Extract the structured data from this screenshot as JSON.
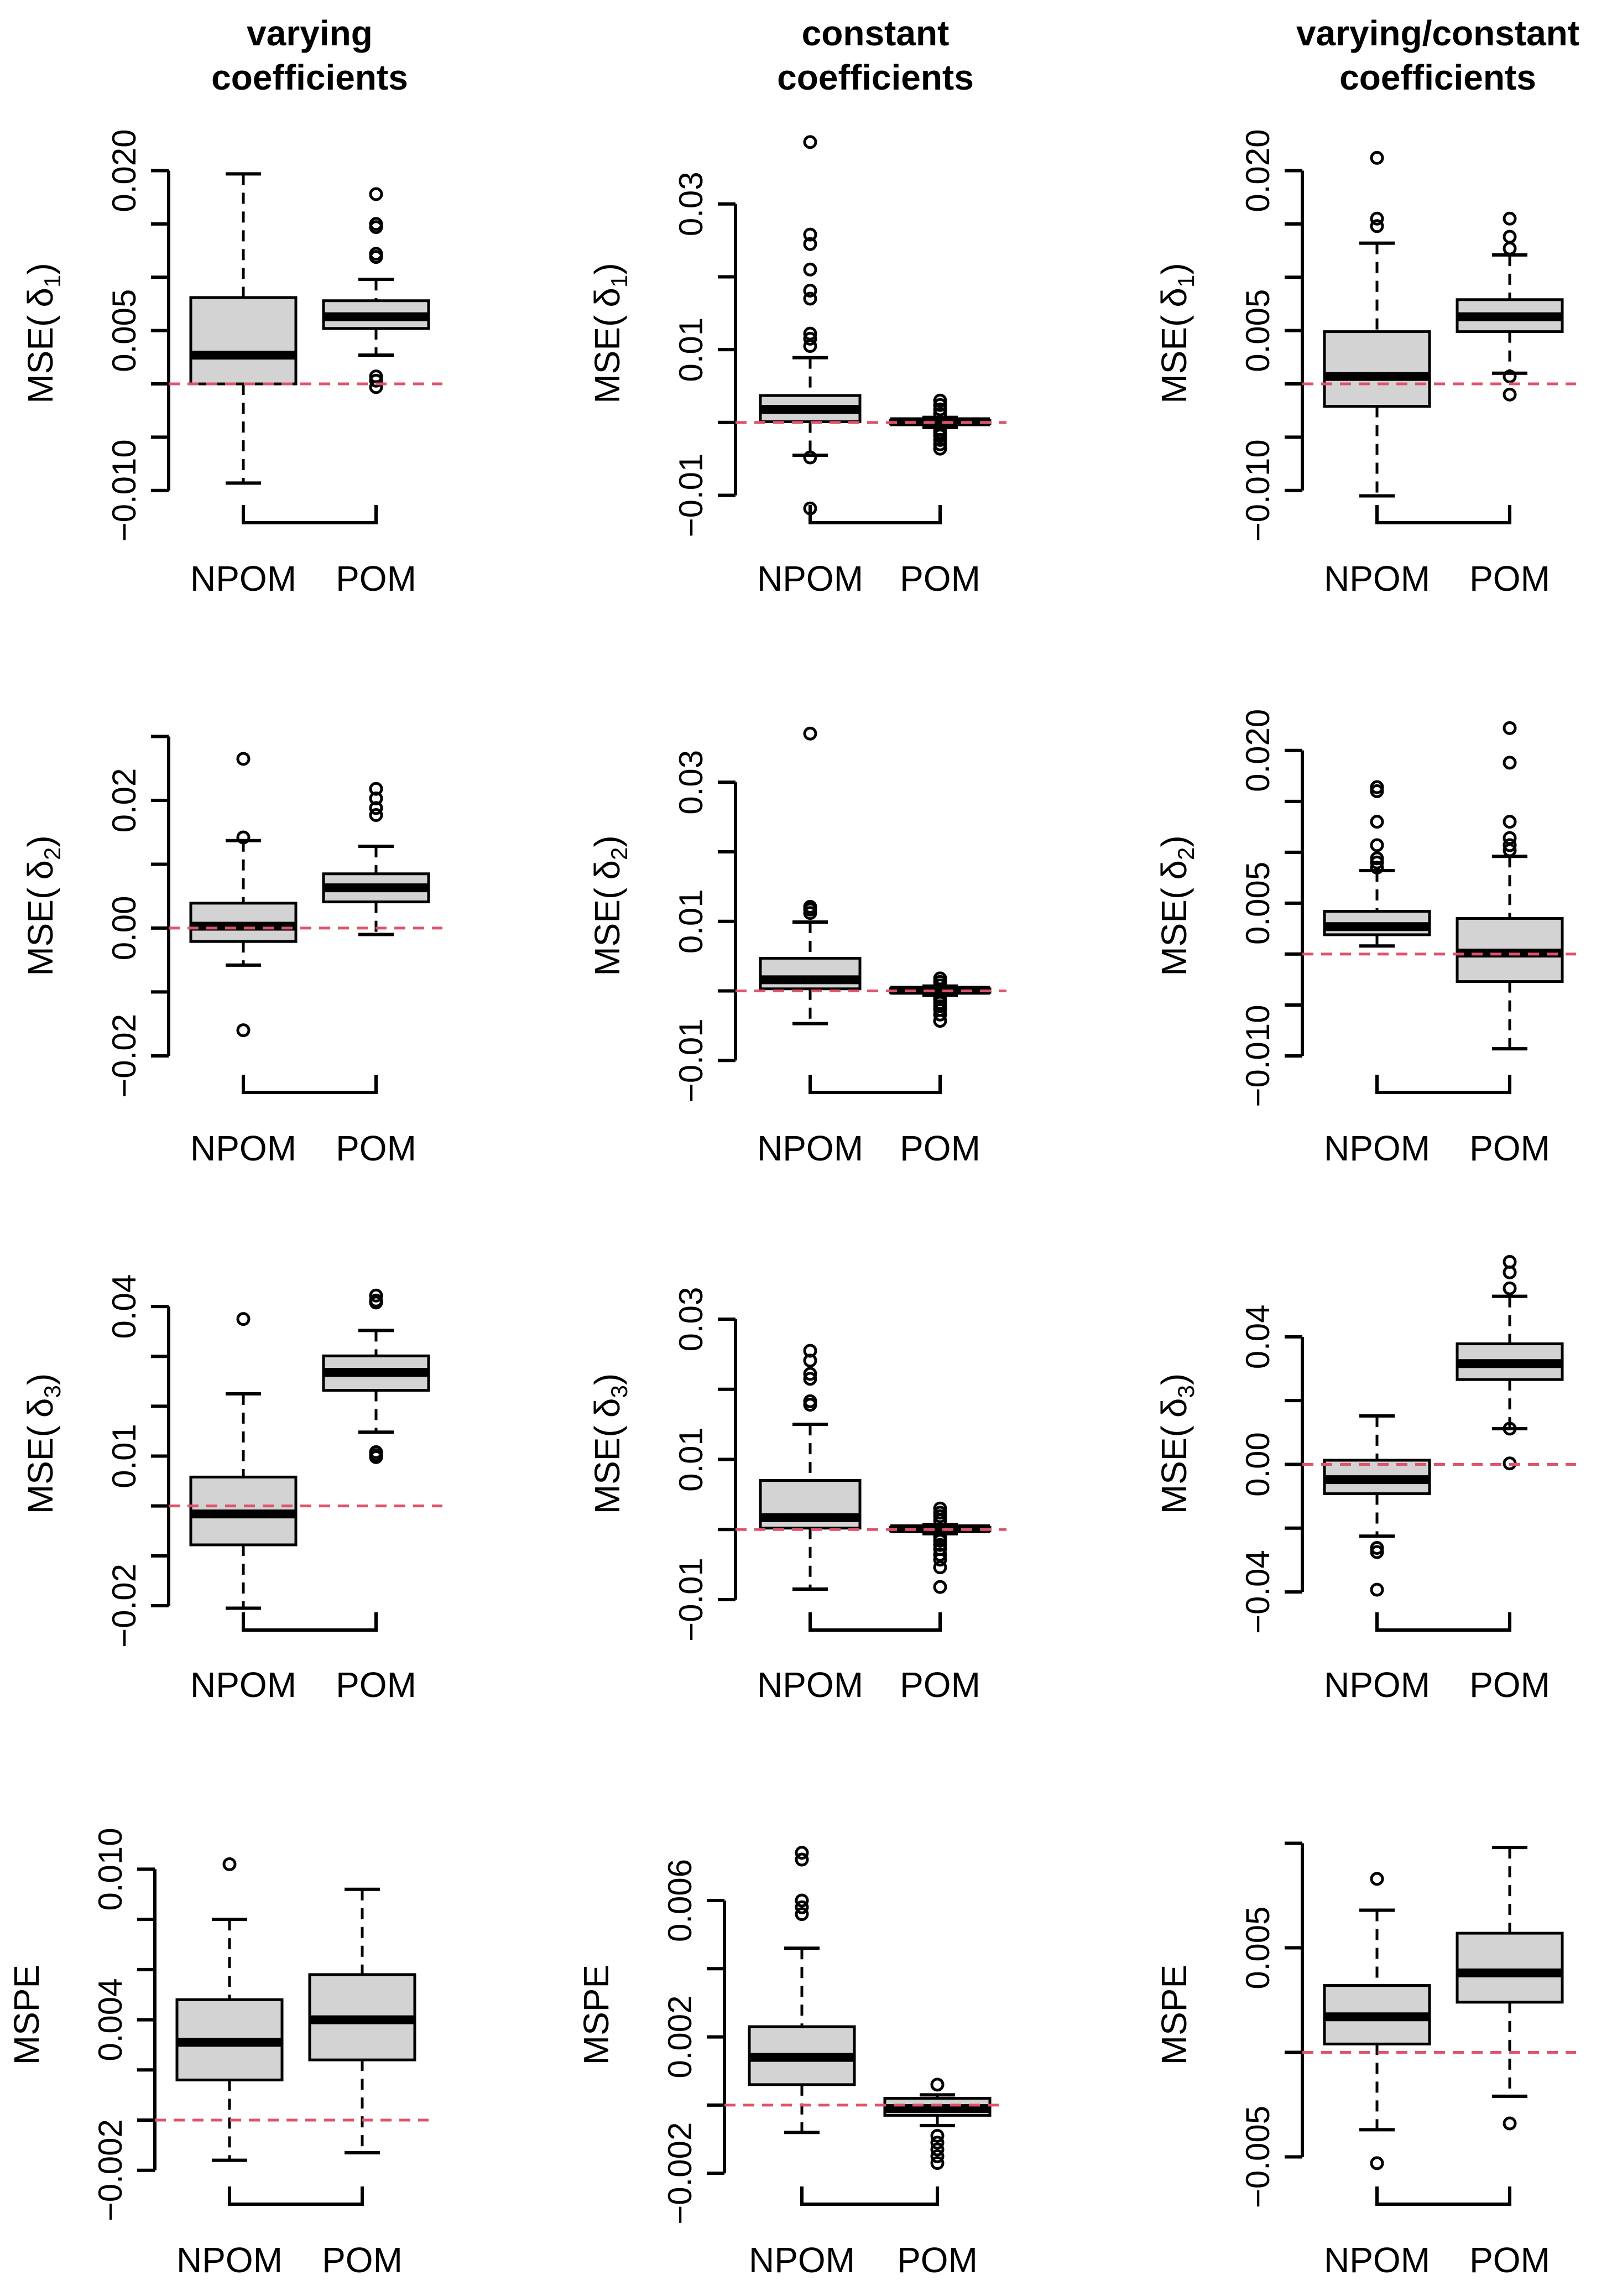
{
  "figure": {
    "columns": [
      {
        "title": "varying\ncoefficients"
      },
      {
        "title": "constant\ncoefficients"
      },
      {
        "title": "varying/constant\ncoefficients"
      }
    ]
  },
  "colors": {
    "box_fill": "#d3d3d3",
    "reference_line": "#df536b",
    "stroke": "#000000"
  },
  "chart_data": [
    {
      "type": "boxplot",
      "title": "",
      "ylabel": "MSE(δ1)",
      "ylabel_main": "MSE(",
      "ylabel_greek": "δ",
      "ylabel_sub": "1",
      "ylabel_end": ")",
      "ylim": [
        -0.0125,
        0.022
      ],
      "yticks": [
        -0.01,
        0.005,
        0.02
      ],
      "ytick_labels": [
        "−0.010",
        "0.005",
        "0.020"
      ],
      "yminor": [
        -0.005,
        0.0,
        0.01,
        0.015
      ],
      "categories": [
        "NPOM",
        "POM"
      ],
      "reference": 0,
      "boxes": [
        {
          "name": "NPOM",
          "whislo": -0.0093,
          "q1": 0.0,
          "med": 0.0027,
          "q3": 0.0081,
          "whishi": 0.0197,
          "outliers": []
        },
        {
          "name": "POM",
          "whislo": 0.0027,
          "q1": 0.0052,
          "med": 0.0063,
          "q3": 0.0078,
          "whishi": 0.0098,
          "outliers": [
            0.0178,
            0.015,
            0.0147,
            0.0122,
            0.0119,
            0.0007,
            0.0003,
            -0.0003
          ]
        }
      ]
    },
    {
      "type": "boxplot",
      "title": "",
      "ylabel": "MSE(δ1)",
      "ylabel_main": "MSE(",
      "ylabel_greek": "δ",
      "ylabel_sub": "1",
      "ylabel_end": ")",
      "ylim": [
        -0.013,
        0.0375
      ],
      "yticks": [
        -0.01,
        0.01,
        0.03
      ],
      "ytick_labels": [
        "−0.01",
        "0.01",
        "0.03"
      ],
      "yminor": [
        0.0,
        0.02
      ],
      "categories": [
        "NPOM",
        "POM"
      ],
      "reference": 0,
      "boxes": [
        {
          "name": "NPOM",
          "whislo": -0.0045,
          "q1": 0.0001,
          "med": 0.0018,
          "q3": 0.0037,
          "whishi": 0.0089,
          "outliers": [
            0.0385,
            0.0258,
            0.0245,
            0.021,
            0.0181,
            0.017,
            0.0122,
            0.0115,
            0.0105,
            -0.0048,
            -0.0118
          ]
        },
        {
          "name": "POM",
          "whislo": -0.0007,
          "q1": -0.0002,
          "med": 0.0001,
          "q3": 0.0003,
          "whishi": 0.0007,
          "outliers": [
            0.003,
            0.0024,
            0.0018,
            0.0012,
            -0.001,
            -0.0014,
            -0.0018,
            -0.0024,
            -0.003,
            -0.0036
          ]
        }
      ]
    },
    {
      "type": "boxplot",
      "title": "",
      "ylabel": "MSE(δ1)",
      "ylabel_main": "MSE(",
      "ylabel_greek": "δ",
      "ylabel_sub": "1",
      "ylabel_end": ")",
      "ylim": [
        -0.0125,
        0.022
      ],
      "yticks": [
        -0.01,
        0.005,
        0.02
      ],
      "ytick_labels": [
        "−0.010",
        "0.005",
        "0.020"
      ],
      "yminor": [
        -0.005,
        0.0,
        0.01,
        0.015
      ],
      "categories": [
        "NPOM",
        "POM"
      ],
      "reference": 0,
      "boxes": [
        {
          "name": "NPOM",
          "whislo": -0.0105,
          "q1": -0.0021,
          "med": 0.0007,
          "q3": 0.0049,
          "whishi": 0.0132,
          "outliers": [
            0.0212,
            0.0155,
            0.0148
          ]
        },
        {
          "name": "POM",
          "whislo": 0.001,
          "q1": 0.0049,
          "med": 0.0063,
          "q3": 0.0079,
          "whishi": 0.0121,
          "outliers": [
            0.0155,
            0.0138,
            0.0127,
            0.0007,
            -0.001
          ]
        }
      ]
    },
    {
      "type": "boxplot",
      "title": "",
      "ylabel": "MSE(δ2)",
      "ylabel_main": "MSE(",
      "ylabel_greek": "δ",
      "ylabel_sub": "2",
      "ylabel_end": ")",
      "ylim": [
        -0.024,
        0.031
      ],
      "yticks": [
        -0.02,
        0.0,
        0.02
      ],
      "ytick_labels": [
        "−0.02",
        "0.00",
        "0.02"
      ],
      "yminor": [
        -0.01,
        0.01,
        0.03
      ],
      "categories": [
        "NPOM",
        "POM"
      ],
      "reference": 0,
      "boxes": [
        {
          "name": "NPOM",
          "whislo": -0.0058,
          "q1": -0.0021,
          "med": 0.0003,
          "q3": 0.0039,
          "whishi": 0.0137,
          "outliers": [
            0.0265,
            0.0142,
            -0.016
          ]
        },
        {
          "name": "POM",
          "whislo": -0.001,
          "q1": 0.0041,
          "med": 0.0063,
          "q3": 0.0085,
          "whishi": 0.0128,
          "outliers": [
            0.0218,
            0.0203,
            0.0188,
            0.0177
          ]
        }
      ]
    },
    {
      "type": "boxplot",
      "title": "",
      "ylabel": "MSE(δ2)",
      "ylabel_main": "MSE(",
      "ylabel_greek": "δ",
      "ylabel_sub": "2",
      "ylabel_end": ")",
      "ylim": [
        -0.013,
        0.0375
      ],
      "yticks": [
        -0.01,
        0.01,
        0.03
      ],
      "ytick_labels": [
        "−0.01",
        "0.01",
        "0.03"
      ],
      "yminor": [
        0.0,
        0.02
      ],
      "categories": [
        "NPOM",
        "POM"
      ],
      "reference": 0,
      "boxes": [
        {
          "name": "NPOM",
          "whislo": -0.0047,
          "q1": 0.0003,
          "med": 0.0016,
          "q3": 0.0047,
          "whishi": 0.0099,
          "outliers": [
            0.037,
            0.0121,
            0.0117,
            0.0112
          ]
        },
        {
          "name": "POM",
          "whislo": -0.0006,
          "q1": -0.0002,
          "med": 0.0001,
          "q3": 0.0003,
          "whishi": 0.0007,
          "outliers": [
            0.0018,
            0.0013,
            0.0008,
            -0.0008,
            -0.0012,
            -0.0017,
            -0.0022,
            -0.0027,
            -0.0034,
            -0.0043
          ]
        }
      ]
    },
    {
      "type": "boxplot",
      "title": "",
      "ylabel": "MSE(δ2)",
      "ylabel_main": "MSE(",
      "ylabel_greek": "δ",
      "ylabel_sub": "2",
      "ylabel_end": ")",
      "ylim": [
        -0.0125,
        0.022
      ],
      "yticks": [
        -0.01,
        0.005,
        0.02
      ],
      "ytick_labels": [
        "−0.010",
        "0.005",
        "0.020"
      ],
      "yminor": [
        -0.005,
        0.0,
        0.01,
        0.015
      ],
      "categories": [
        "NPOM",
        "POM"
      ],
      "reference": 0,
      "boxes": [
        {
          "name": "NPOM",
          "whislo": 0.0008,
          "q1": 0.0019,
          "med": 0.0027,
          "q3": 0.0042,
          "whishi": 0.0082,
          "outliers": [
            0.0164,
            0.016,
            0.013,
            0.0107,
            0.0094,
            0.009,
            0.0085
          ]
        },
        {
          "name": "POM",
          "whislo": -0.0093,
          "q1": -0.0027,
          "med": 0.0001,
          "q3": 0.0035,
          "whishi": 0.0096,
          "outliers": [
            0.0222,
            0.0188,
            0.013,
            0.0114,
            0.0107,
            0.0102
          ]
        }
      ]
    },
    {
      "type": "boxplot",
      "title": "",
      "ylabel": "MSE(δ3)",
      "ylabel_main": "MSE(",
      "ylabel_greek": "δ",
      "ylabel_sub": "3",
      "ylabel_end": ")",
      "ylim": [
        -0.023,
        0.048
      ],
      "yticks": [
        -0.02,
        0.01,
        0.04
      ],
      "ytick_labels": [
        "−0.02",
        "0.01",
        "0.04"
      ],
      "yminor": [
        -0.01,
        0.0,
        0.02,
        0.03
      ],
      "categories": [
        "NPOM",
        "POM"
      ],
      "reference": 0,
      "boxes": [
        {
          "name": "NPOM",
          "whislo": -0.0205,
          "q1": -0.0078,
          "med": -0.0016,
          "q3": 0.0058,
          "whishi": 0.0225,
          "outliers": [
            0.0375
          ]
        },
        {
          "name": "POM",
          "whislo": 0.0148,
          "q1": 0.0232,
          "med": 0.0268,
          "q3": 0.0301,
          "whishi": 0.0352,
          "outliers": [
            0.0422,
            0.0412,
            0.0408,
            0.0108,
            0.0102,
            0.0098
          ]
        }
      ]
    },
    {
      "type": "boxplot",
      "title": "",
      "ylabel": "MSE(δ3)",
      "ylabel_main": "MSE(",
      "ylabel_greek": "δ",
      "ylabel_sub": "3",
      "ylabel_end": ")",
      "ylim": [
        -0.013,
        0.0375
      ],
      "yticks": [
        -0.01,
        0.01,
        0.03
      ],
      "ytick_labels": [
        "−0.01",
        "0.01",
        "0.03"
      ],
      "yminor": [
        0.0,
        0.02
      ],
      "categories": [
        "NPOM",
        "POM"
      ],
      "reference": 0,
      "boxes": [
        {
          "name": "NPOM",
          "whislo": -0.0085,
          "q1": 0.0002,
          "med": 0.0017,
          "q3": 0.007,
          "whishi": 0.015,
          "outliers": [
            0.0255,
            0.0241,
            0.0222,
            0.0215,
            0.0183,
            0.0178
          ]
        },
        {
          "name": "POM",
          "whislo": -0.0006,
          "q1": -0.0002,
          "med": 0.0001,
          "q3": 0.0003,
          "whishi": 0.0007,
          "outliers": [
            0.003,
            0.0024,
            0.0019,
            0.0013,
            -0.001,
            -0.0016,
            -0.0022,
            -0.0028,
            -0.0036,
            -0.0043,
            -0.0054,
            -0.0082
          ]
        }
      ]
    },
    {
      "type": "boxplot",
      "title": "",
      "ylabel": "MSE(δ3)",
      "ylabel_main": "MSE(",
      "ylabel_greek": "δ",
      "ylabel_sub": "3",
      "ylabel_end": ")",
      "ylim": [
        -0.049,
        0.062
      ],
      "yticks": [
        -0.04,
        0.0,
        0.04
      ],
      "ytick_labels": [
        "−0.04",
        "0.00",
        "0.04"
      ],
      "yminor": [
        -0.02,
        0.02
      ],
      "categories": [
        "NPOM",
        "POM"
      ],
      "reference": 0,
      "boxes": [
        {
          "name": "NPOM",
          "whislo": -0.0225,
          "q1": -0.0092,
          "med": -0.0048,
          "q3": 0.0013,
          "whishi": 0.0152,
          "outliers": [
            -0.0262,
            -0.0275,
            -0.0393
          ]
        },
        {
          "name": "POM",
          "whislo": 0.0112,
          "q1": 0.0266,
          "med": 0.0316,
          "q3": 0.0378,
          "whishi": 0.0527,
          "outliers": [
            0.0635,
            0.0602,
            0.0552,
            0.0112,
            0.0003
          ]
        }
      ]
    },
    {
      "type": "boxplot",
      "title": "",
      "ylabel": "MSPE",
      "ylabel_main": "MSPE",
      "ylabel_greek": "",
      "ylabel_sub": "",
      "ylabel_end": "",
      "ylim": [
        -0.0028,
        0.0112
      ],
      "yticks": [
        -0.002,
        0.004,
        0.01
      ],
      "ytick_labels": [
        "−0.002",
        "0.004",
        "0.010"
      ],
      "yminor": [
        0.0,
        0.002,
        0.006,
        0.008
      ],
      "categories": [
        "NPOM",
        "POM"
      ],
      "reference": 0,
      "boxes": [
        {
          "name": "NPOM",
          "whislo": -0.0016,
          "q1": 0.0016,
          "med": 0.0031,
          "q3": 0.0048,
          "whishi": 0.008,
          "outliers": [
            0.0102
          ]
        },
        {
          "name": "POM",
          "whislo": -0.0013,
          "q1": 0.0024,
          "med": 0.004,
          "q3": 0.0058,
          "whishi": 0.0092,
          "outliers": []
        }
      ]
    },
    {
      "type": "boxplot",
      "title": "",
      "ylabel": "MSPE",
      "ylabel_main": "MSPE",
      "ylabel_greek": "",
      "ylabel_sub": "",
      "ylabel_end": "",
      "ylim": [
        -0.0025,
        0.0078
      ],
      "yticks": [
        -0.002,
        0.002,
        0.006
      ],
      "ytick_labels": [
        "−0.002",
        "0.002",
        "0.006"
      ],
      "yminor": [
        0.0,
        0.004
      ],
      "categories": [
        "NPOM",
        "POM"
      ],
      "reference": 0,
      "boxes": [
        {
          "name": "NPOM",
          "whislo": -0.0008,
          "q1": 0.0006,
          "med": 0.0014,
          "q3": 0.0023,
          "whishi": 0.0046,
          "outliers": [
            0.0074,
            0.0072,
            0.006,
            0.0058,
            0.0056
          ]
        },
        {
          "name": "POM",
          "whislo": -0.0006,
          "q1": -0.0003,
          "med": -0.0001,
          "q3": 0.0002,
          "whishi": 0.0003,
          "outliers": [
            0.0006,
            -0.0009,
            -0.0011,
            -0.0013,
            -0.0015,
            -0.0017
          ]
        }
      ]
    },
    {
      "type": "boxplot",
      "title": "",
      "ylabel": "MSPE",
      "ylabel_main": "MSPE",
      "ylabel_greek": "",
      "ylabel_sub": "",
      "ylabel_end": "",
      "ylim": [
        -0.0066,
        0.0102
      ],
      "yticks": [
        -0.005,
        0.005
      ],
      "ytick_labels": [
        "−0.005",
        "0.005"
      ],
      "yminor": [
        0.0,
        0.01
      ],
      "categories": [
        "NPOM",
        "POM"
      ],
      "reference": 0,
      "boxes": [
        {
          "name": "NPOM",
          "whislo": -0.0037,
          "q1": 0.0004,
          "med": 0.0017,
          "q3": 0.0032,
          "whishi": 0.0068,
          "outliers": [
            0.0083,
            -0.0053
          ]
        },
        {
          "name": "POM",
          "whislo": -0.0021,
          "q1": 0.0024,
          "med": 0.0038,
          "q3": 0.0057,
          "whishi": 0.0098,
          "outliers": [
            -0.0034
          ]
        }
      ]
    }
  ]
}
